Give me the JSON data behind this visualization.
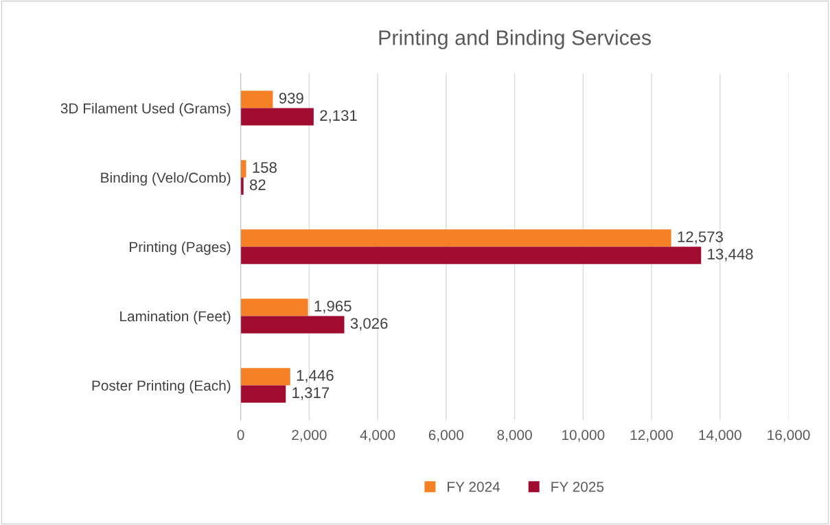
{
  "chart_data": {
    "type": "bar",
    "orientation": "horizontal",
    "title": "Printing and Binding Services",
    "categories": [
      "3D Filament Used (Grams)",
      "Binding (Velo/Comb)",
      "Printing (Pages)",
      "Lamination (Feet)",
      "Poster Printing (Each)"
    ],
    "series": [
      {
        "name": "FY 2024",
        "color": "#f58025",
        "values": [
          939,
          158,
          12573,
          1965,
          1446
        ],
        "value_labels": [
          "939",
          "158",
          "12,573",
          "1,965",
          "1,446"
        ]
      },
      {
        "name": "FY 2025",
        "color": "#a00c30",
        "values": [
          2131,
          82,
          13448,
          3026,
          1317
        ],
        "value_labels": [
          "2,131",
          "82",
          "13,448",
          "3,026",
          "1,317"
        ]
      }
    ],
    "xlim": [
      0,
      16000
    ],
    "xticks": [
      {
        "value": 0,
        "label": "0"
      },
      {
        "value": 2000,
        "label": "2,000"
      },
      {
        "value": 4000,
        "label": "4,000"
      },
      {
        "value": 6000,
        "label": "6,000"
      },
      {
        "value": 8000,
        "label": "8,000"
      },
      {
        "value": 10000,
        "label": "10,000"
      },
      {
        "value": 12000,
        "label": "12,000"
      },
      {
        "value": 14000,
        "label": "14,000"
      },
      {
        "value": 16000,
        "label": "16,000"
      }
    ],
    "grid": "x",
    "legend": "bottom"
  }
}
